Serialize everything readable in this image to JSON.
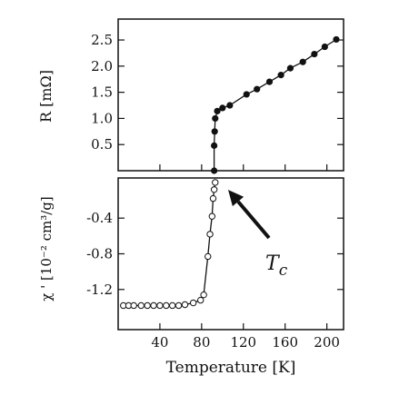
{
  "chart_data": [
    {
      "type": "line",
      "panel": "top",
      "xlabel": "",
      "ylabel": "R [mΩ]",
      "xlim": [
        0,
        216
      ],
      "ylim": [
        0,
        2.9
      ],
      "yticks": [
        0.5,
        1.0,
        1.5,
        2.0,
        2.5
      ],
      "ytick_labels": [
        "0.5",
        "1.0",
        "1.5",
        "2.0",
        "2.5"
      ],
      "marker": "filled-circle",
      "series": [
        {
          "x": [
            92,
            92,
            92.5,
            93,
            95,
            100,
            107,
            123,
            133,
            145,
            156,
            165,
            177,
            188,
            198,
            209
          ],
          "y": [
            0.0,
            0.48,
            0.75,
            1.0,
            1.14,
            1.2,
            1.25,
            1.46,
            1.56,
            1.7,
            1.83,
            1.96,
            2.08,
            2.23,
            2.37,
            2.51
          ]
        }
      ],
      "annotation": {
        "label": "T",
        "label_subscript": "c",
        "points_to_x": 92
      }
    },
    {
      "type": "line",
      "panel": "bottom",
      "xlabel": "Temperature [K]",
      "ylabel": "χ ' [10⁻² cm³/g]",
      "xlim": [
        0,
        216
      ],
      "ylim": [
        -1.65,
        0.05
      ],
      "xticks": [
        40,
        80,
        120,
        160,
        200
      ],
      "xtick_labels": [
        "40",
        "80",
        "120",
        "160",
        "200"
      ],
      "yticks": [
        -0.4,
        -0.8,
        -1.2
      ],
      "ytick_labels": [
        "-0.4",
        "-0.8",
        "-1.2"
      ],
      "marker": "open-circle",
      "series": [
        {
          "x": [
            5,
            10,
            15,
            22,
            28,
            34,
            40,
            46,
            52,
            58,
            64,
            72,
            79,
            82,
            86,
            88,
            90,
            91,
            92,
            93
          ],
          "y": [
            -1.38,
            -1.38,
            -1.38,
            -1.38,
            -1.38,
            -1.38,
            -1.38,
            -1.38,
            -1.38,
            -1.38,
            -1.37,
            -1.35,
            -1.32,
            -1.26,
            -0.83,
            -0.58,
            -0.38,
            -0.18,
            -0.08,
            0.0
          ]
        }
      ]
    }
  ]
}
